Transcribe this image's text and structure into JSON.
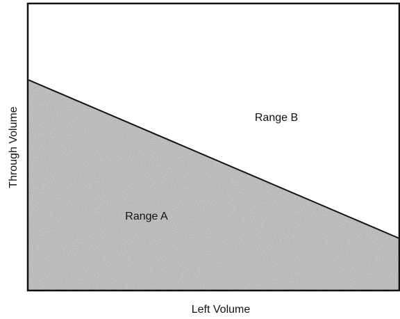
{
  "axes": {
    "x_label": "Left Volume",
    "y_label": "Through Volume"
  },
  "regions": [
    {
      "label": "Range A"
    },
    {
      "label": "Range B"
    }
  ]
}
